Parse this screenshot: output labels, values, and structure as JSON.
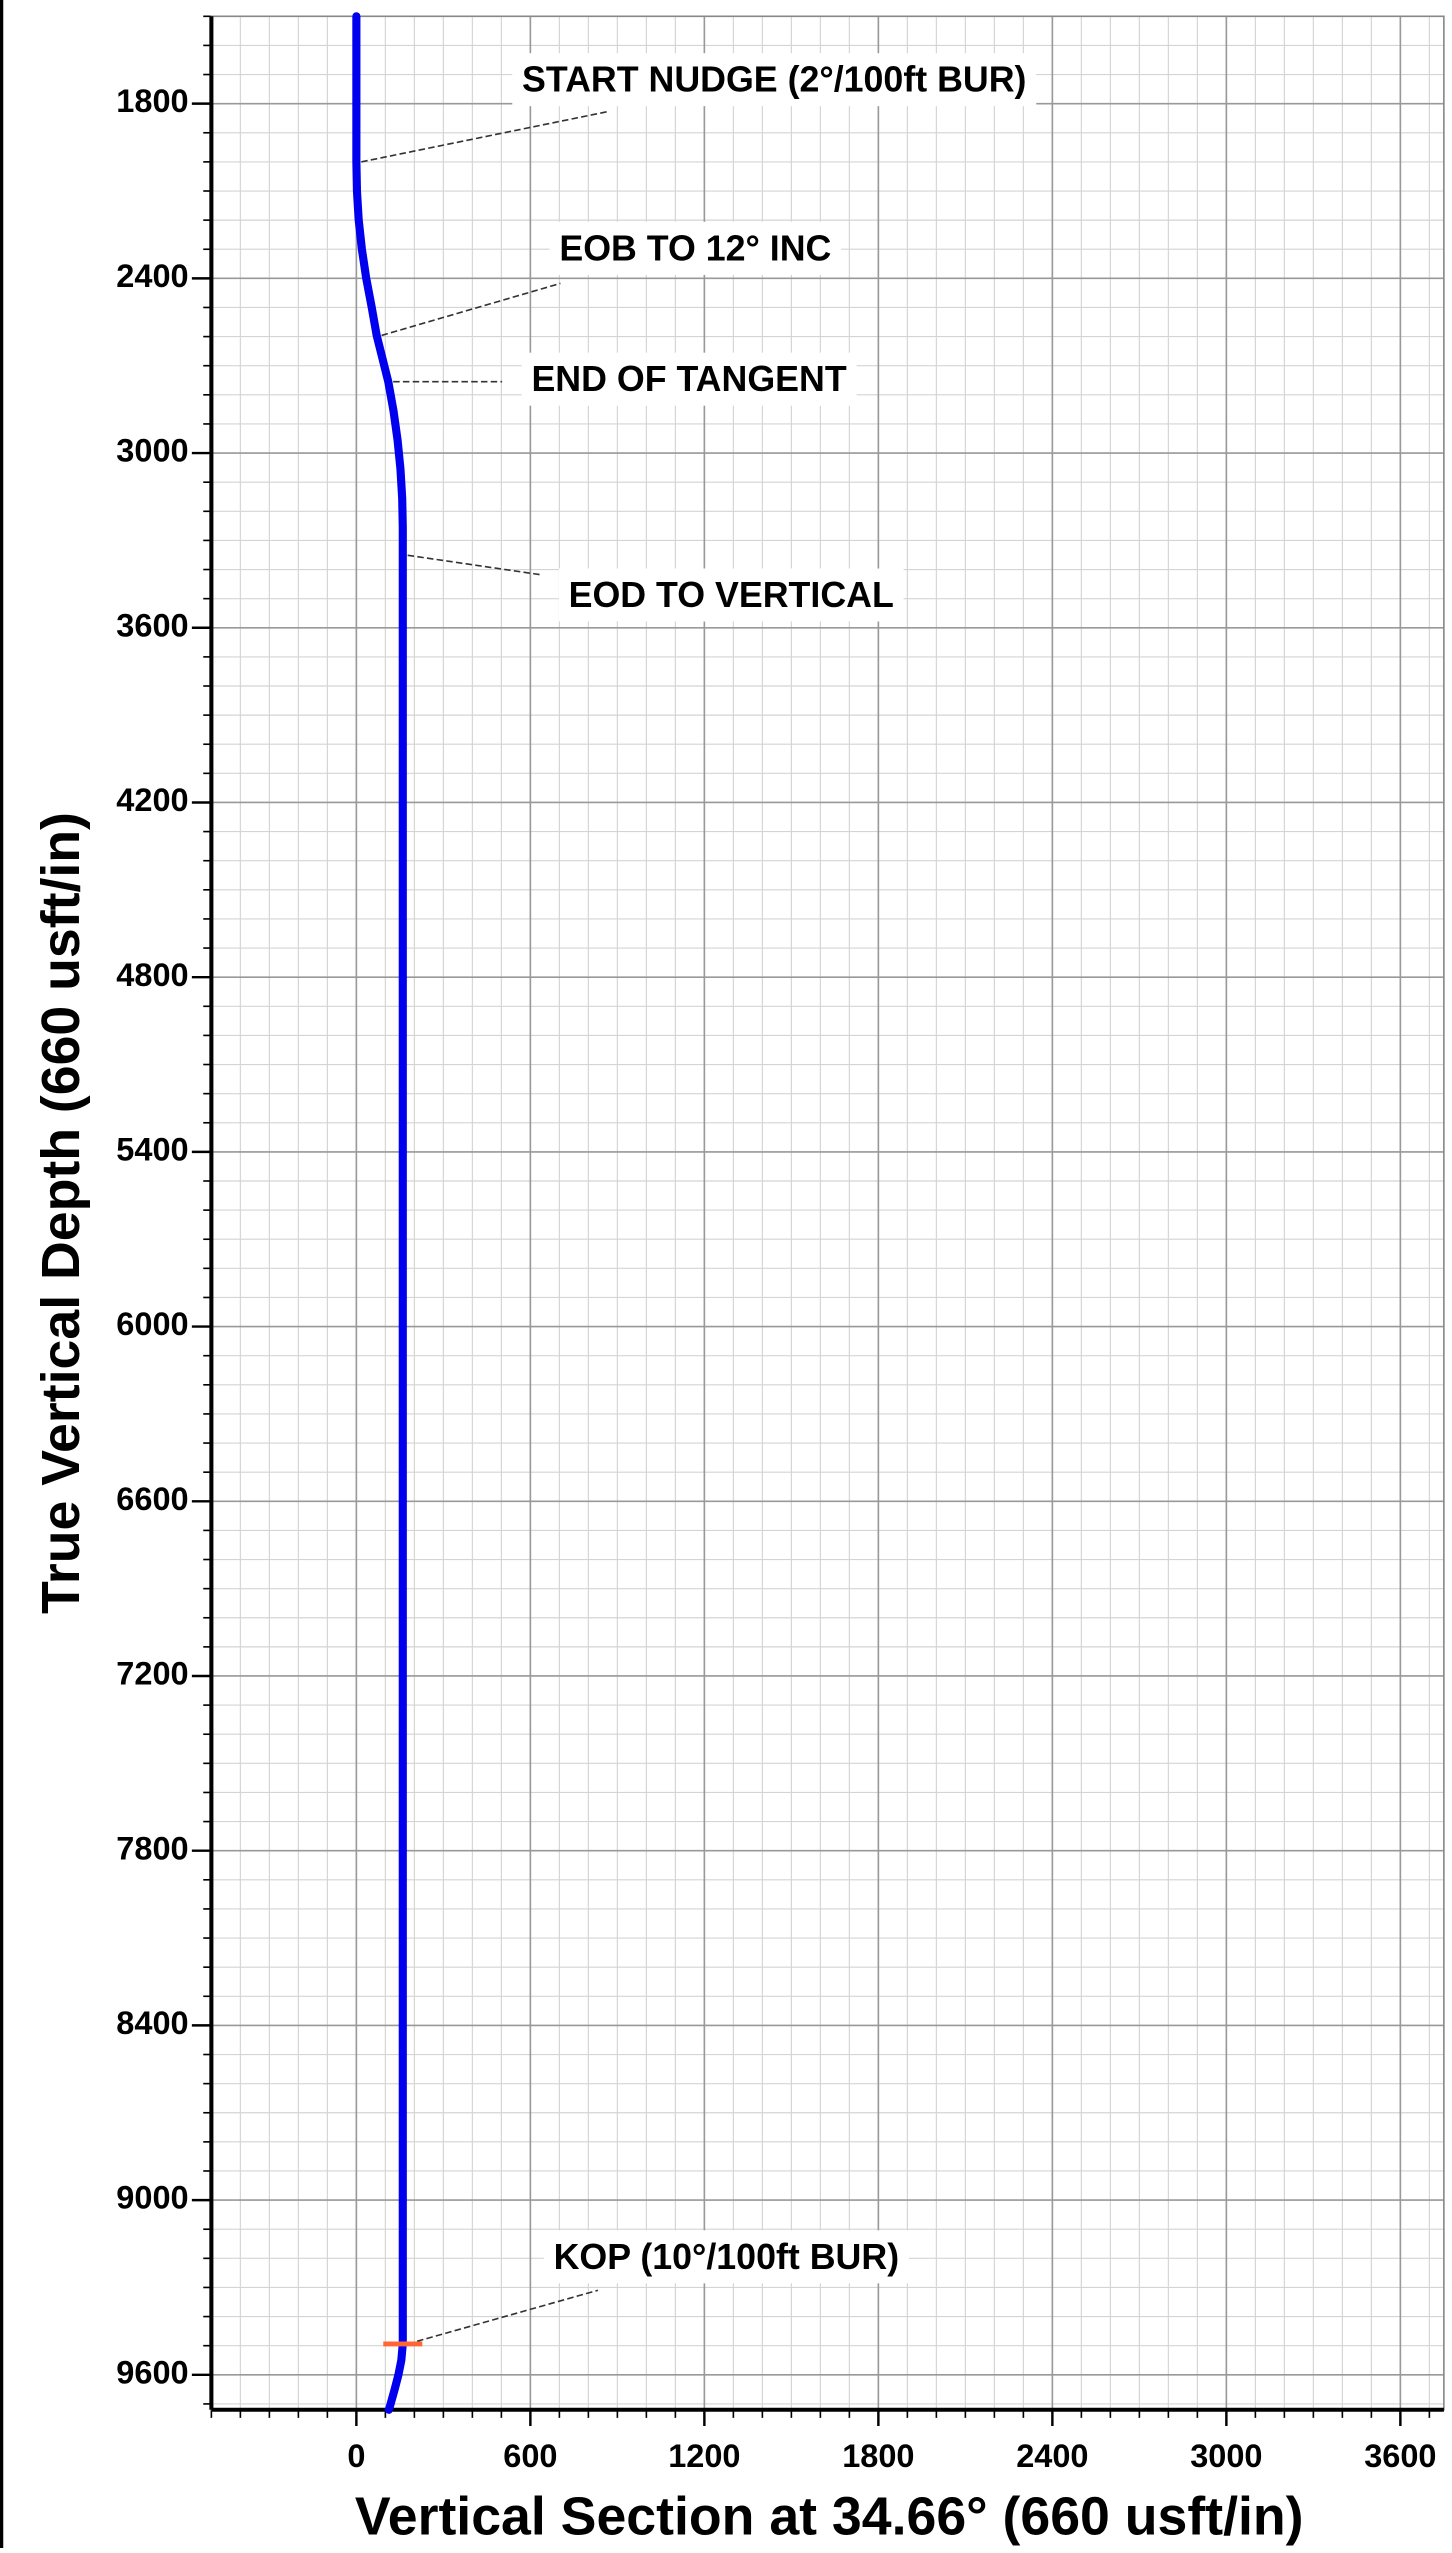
{
  "chart_data": {
    "type": "line",
    "xlabel": "Vertical Section at 34.66° (660 usft/in)",
    "ylabel": "True Vertical Depth (660 usft/in)",
    "xlim": [
      -500,
      3750
    ],
    "ylim": [
      9720,
      1500
    ],
    "xticks": [
      0,
      600,
      1200,
      1800,
      2400,
      3000,
      3600
    ],
    "yticks": [
      1800,
      2400,
      3000,
      3600,
      4200,
      4800,
      5400,
      6000,
      6600,
      7200,
      7800,
      8400,
      9000,
      9600
    ],
    "grid": true,
    "series": [
      {
        "color": "#0000ee",
        "x": [
          0,
          0,
          2,
          8,
          19,
          34,
          53,
          70,
          110,
          128,
          142,
          152,
          158,
          160,
          160,
          160,
          155,
          145,
          132,
          118,
          112
        ],
        "values": [
          1500,
          2000,
          2100,
          2200,
          2300,
          2400,
          2500,
          2596,
          2755,
          2855,
          2955,
          3055,
          3155,
          3255,
          3351,
          9494,
          9550,
          9600,
          9650,
          9700,
          9720
        ]
      }
    ],
    "annotations": [
      {
        "text": "START NUDGE (2°/100ft BUR)",
        "x": 0,
        "y": 2000
      },
      {
        "text": "EOB TO 12° INC",
        "x": 70,
        "y": 2596
      },
      {
        "text": "END OF TANGENT",
        "x": 110,
        "y": 2755
      },
      {
        "text": "EOD TO VERTICAL",
        "x": 160,
        "y": 3351
      },
      {
        "text": "KOP (10°/100ft BUR)",
        "x": 160,
        "y": 9494,
        "marker_color": "#ff6633"
      }
    ]
  }
}
